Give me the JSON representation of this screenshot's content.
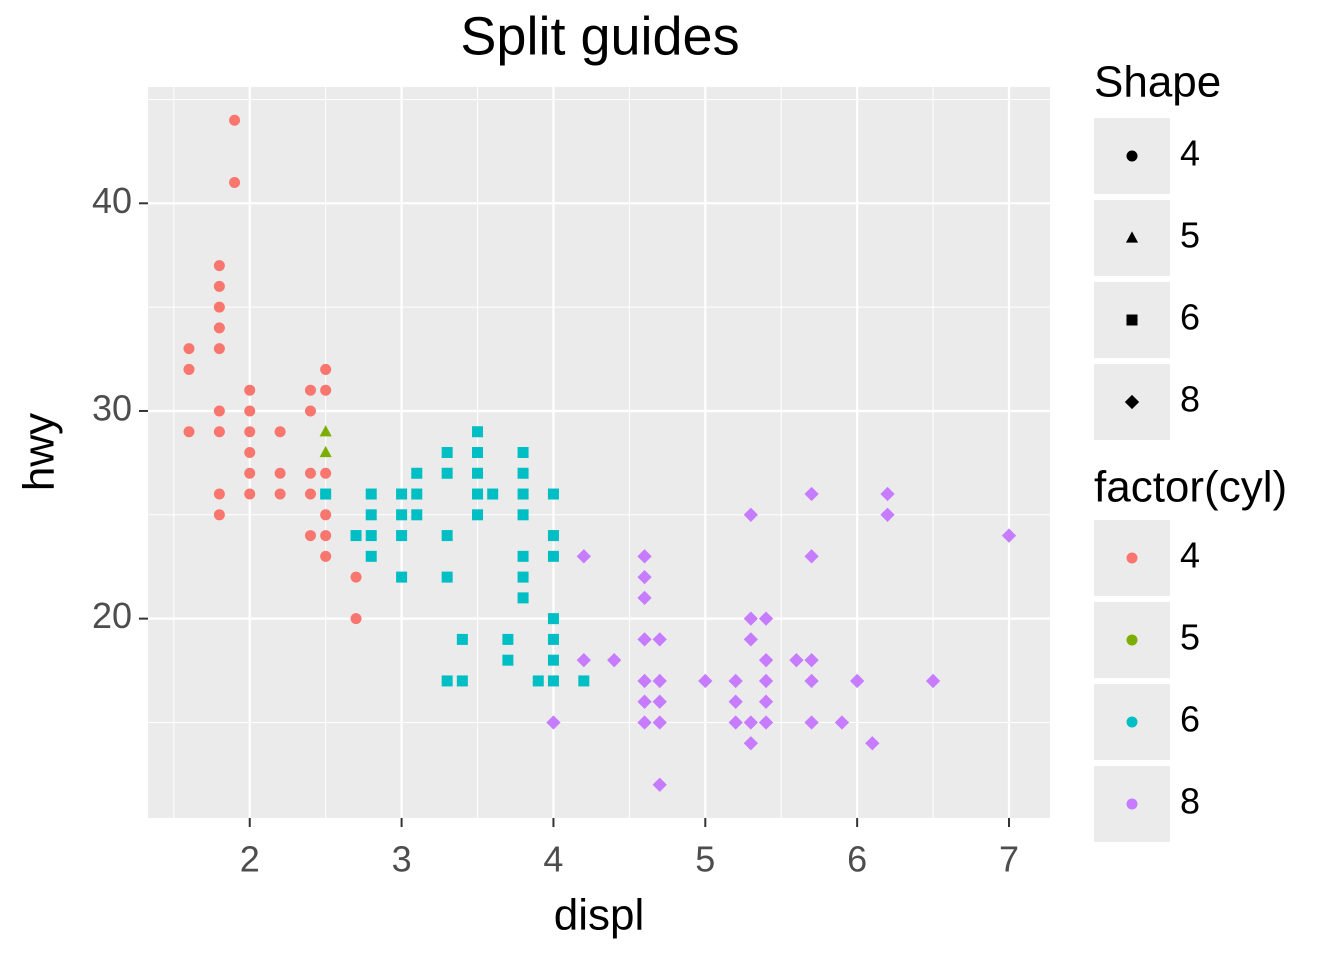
{
  "chart_data": {
    "type": "scatter",
    "title": "Split guides",
    "x_label": "displ",
    "y_label": "hwy",
    "xlim": [
      1.33,
      7.27
    ],
    "ylim": [
      10.4,
      45.6
    ],
    "xticks": [
      2,
      3,
      4,
      5,
      6,
      7
    ],
    "yticks": [
      20,
      30,
      40
    ],
    "xminor": [
      1.5,
      2.5,
      3.5,
      4.5,
      5.5,
      6.5
    ],
    "yminor": [
      15,
      25,
      35,
      45
    ],
    "grid": true,
    "legend_position": "right",
    "shape_legend": {
      "title": "Shape",
      "labels": [
        "4",
        "5",
        "6",
        "8"
      ],
      "shapes": [
        "circle",
        "triangle",
        "square",
        "diamond"
      ]
    },
    "color_legend_title": "factor(cyl)",
    "series": [
      {
        "name": "4",
        "color": "#F8766D",
        "shape": "circle",
        "x": [
          1.9,
          1.9,
          1.8,
          1.8,
          1.8,
          1.8,
          1.8,
          1.6,
          1.6,
          1.6,
          2.5,
          2.5,
          2.4,
          2.0,
          1.8,
          2.0,
          2.4,
          1.8,
          2.0,
          2.2,
          2.0,
          2.0,
          2.2,
          2.4,
          2.5,
          2.5,
          1.8,
          2.0,
          2.2,
          2.4,
          1.8,
          2.5,
          2.4,
          2.5,
          2.5,
          2.7,
          2.7
        ],
        "values": [
          44,
          41,
          37,
          36,
          35,
          34,
          33,
          33,
          32,
          29,
          32,
          31,
          31,
          31,
          30,
          30,
          30,
          29,
          29,
          29,
          28,
          27,
          27,
          27,
          27,
          26,
          26,
          26,
          26,
          26,
          25,
          25,
          24,
          24,
          23,
          22,
          20
        ]
      },
      {
        "name": "5",
        "color": "#7CAE00",
        "shape": "triangle",
        "x": [
          2.5,
          2.5
        ],
        "values": [
          29,
          28
        ]
      },
      {
        "name": "6",
        "color": "#00BFC4",
        "shape": "square",
        "x": [
          2.5,
          2.7,
          2.8,
          2.8,
          2.8,
          2.8,
          3.0,
          3.0,
          3.0,
          3.0,
          3.1,
          3.1,
          3.1,
          3.3,
          3.3,
          3.3,
          3.3,
          3.3,
          3.4,
          3.4,
          3.5,
          3.5,
          3.5,
          3.5,
          3.5,
          3.6,
          3.7,
          3.7,
          3.8,
          3.8,
          3.8,
          3.8,
          3.8,
          3.8,
          3.8,
          3.9,
          4.0,
          4.0,
          4.0,
          4.0,
          4.0,
          4.0,
          4.0,
          4.2
        ],
        "values": [
          26,
          24,
          26,
          25,
          24,
          23,
          26,
          25,
          24,
          22,
          27,
          26,
          25,
          28,
          27,
          24,
          22,
          17,
          19,
          17,
          29,
          28,
          27,
          26,
          25,
          26,
          19,
          18,
          28,
          27,
          26,
          25,
          23,
          22,
          21,
          17,
          26,
          24,
          23,
          20,
          19,
          18,
          17,
          17
        ]
      },
      {
        "name": "8",
        "color": "#C77CFF",
        "shape": "diamond",
        "x": [
          4.0,
          4.2,
          4.2,
          4.4,
          4.6,
          4.6,
          4.6,
          4.6,
          4.6,
          4.6,
          4.6,
          4.7,
          4.7,
          4.7,
          4.7,
          4.7,
          5.0,
          5.2,
          5.2,
          5.2,
          5.3,
          5.3,
          5.3,
          5.3,
          5.3,
          5.4,
          5.4,
          5.4,
          5.4,
          5.4,
          5.6,
          5.7,
          5.7,
          5.7,
          5.7,
          5.7,
          5.9,
          6.0,
          6.1,
          6.2,
          6.2,
          6.5,
          7.0
        ],
        "values": [
          15,
          23,
          18,
          18,
          23,
          22,
          21,
          19,
          17,
          16,
          15,
          19,
          17,
          16,
          15,
          12,
          17,
          17,
          16,
          15,
          25,
          20,
          19,
          15,
          14,
          20,
          18,
          17,
          16,
          15,
          18,
          26,
          23,
          18,
          17,
          15,
          15,
          17,
          14,
          26,
          25,
          17,
          24
        ]
      }
    ]
  }
}
